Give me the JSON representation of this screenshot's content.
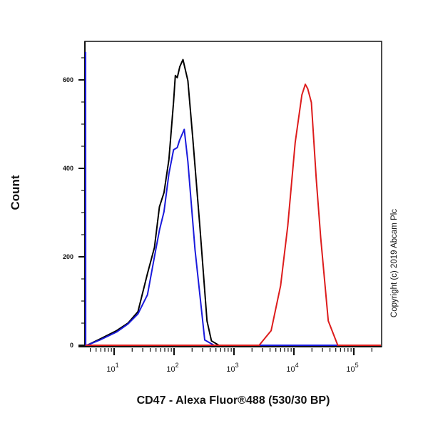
{
  "chart_data": {
    "type": "line",
    "title": "",
    "xlabel": "CD47 - Alexa Fluor®488 (530/30 BP)",
    "ylabel": "Count",
    "xscale": "log",
    "xlim": [
      3.2,
      290000
    ],
    "ylim": [
      0,
      687
    ],
    "yticks": [
      0,
      200,
      400,
      600
    ],
    "ytick_labels": [
      "0",
      "200",
      "400",
      "600"
    ],
    "xticks": [
      10,
      100,
      1000,
      10000,
      100000
    ],
    "xtick_labels": [
      {
        "base": "10",
        "exp": "1"
      },
      {
        "base": "10",
        "exp": "2"
      },
      {
        "base": "10",
        "exp": "3"
      },
      {
        "base": "10",
        "exp": "4"
      },
      {
        "base": "10",
        "exp": "5"
      }
    ],
    "grid": false,
    "series": [
      {
        "name": "black",
        "color": "#000000",
        "points": [
          [
            3.66,
            1
          ],
          [
            5.8,
            14
          ],
          [
            11,
            33
          ],
          [
            17,
            50
          ],
          [
            25,
            76
          ],
          [
            36,
            162
          ],
          [
            47,
            221
          ],
          [
            57,
            313
          ],
          [
            68,
            345
          ],
          [
            82,
            420
          ],
          [
            98,
            550
          ],
          [
            105,
            610
          ],
          [
            113,
            605
          ],
          [
            125,
            630
          ],
          [
            141,
            646
          ],
          [
            170,
            598
          ],
          [
            205,
            469
          ],
          [
            269,
            270
          ],
          [
            355,
            55
          ],
          [
            420,
            10
          ],
          [
            560,
            0
          ],
          [
            290000,
            0
          ]
        ]
      },
      {
        "name": "blue",
        "color": "#1a1adc",
        "points": [
          [
            3.25,
            663
          ],
          [
            3.35,
            0
          ],
          [
            3.66,
            1
          ],
          [
            5.8,
            12
          ],
          [
            11,
            30
          ],
          [
            17,
            48
          ],
          [
            25,
            71
          ],
          [
            36,
            114
          ],
          [
            47,
            200
          ],
          [
            57,
            260
          ],
          [
            68,
            302
          ],
          [
            82,
            388
          ],
          [
            98,
            442
          ],
          [
            113,
            447
          ],
          [
            123,
            463
          ],
          [
            148,
            488
          ],
          [
            170,
            415
          ],
          [
            224,
            216
          ],
          [
            325,
            12
          ],
          [
            465,
            0
          ],
          [
            290000,
            0
          ]
        ]
      },
      {
        "name": "red",
        "color": "#dd1c1c",
        "points": [
          [
            3.2,
            0
          ],
          [
            2630,
            0
          ],
          [
            4170,
            33
          ],
          [
            6000,
            135
          ],
          [
            7900,
            270
          ],
          [
            10500,
            458
          ],
          [
            13600,
            566
          ],
          [
            15500,
            590
          ],
          [
            17000,
            580
          ],
          [
            19600,
            549
          ],
          [
            23600,
            377
          ],
          [
            28000,
            243
          ],
          [
            37500,
            55
          ],
          [
            54000,
            0
          ],
          [
            290000,
            0
          ]
        ]
      }
    ],
    "copyright": "Copyright (c) 2019 Abcam Plc"
  }
}
